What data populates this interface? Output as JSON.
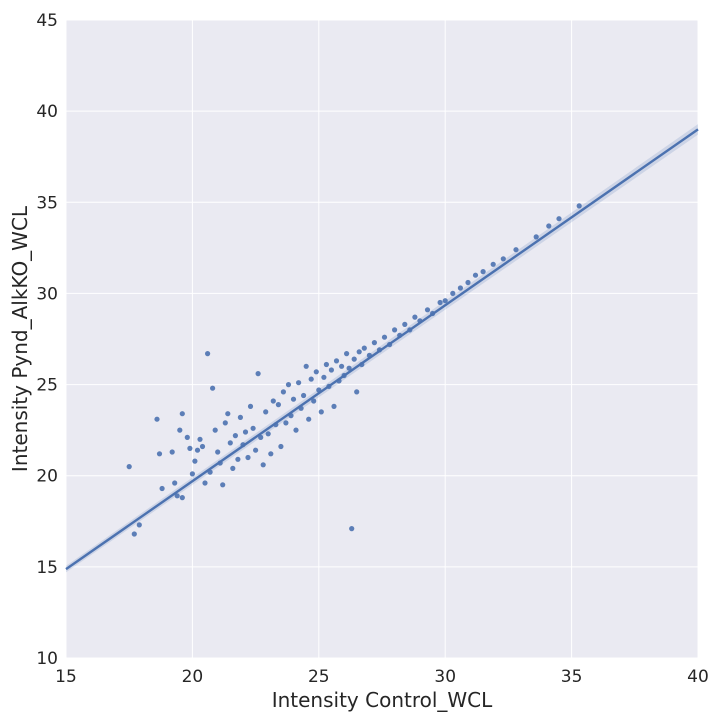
{
  "chart_data": {
    "type": "scatter",
    "title": "",
    "xlabel": "Intensity Control_WCL",
    "ylabel": "Intensity Pynd_AlkKO_WCL",
    "xlim": [
      15,
      40
    ],
    "ylim": [
      10,
      45
    ],
    "xticks": [
      "15",
      "20",
      "25",
      "30",
      "35",
      "40"
    ],
    "yticks": [
      "10",
      "15",
      "20",
      "25",
      "30",
      "35",
      "40",
      "45"
    ],
    "grid": true,
    "legend": "none",
    "regression": {
      "slope": 0.965,
      "intercept": 0.4,
      "x_range": [
        15,
        40
      ],
      "ci_halfwidth": 0.18
    },
    "colors": {
      "background": "#EAEAF2",
      "grid": "#FFFFFF",
      "points": "#4C72B0",
      "line": "#4C72B0"
    },
    "series": [
      {
        "points": [
          [
            17.5,
            20.5
          ],
          [
            17.7,
            16.8
          ],
          [
            17.9,
            17.3
          ],
          [
            18.6,
            23.1
          ],
          [
            18.7,
            21.2
          ],
          [
            18.8,
            19.3
          ],
          [
            19.2,
            21.3
          ],
          [
            19.3,
            19.6
          ],
          [
            19.4,
            18.9
          ],
          [
            19.6,
            18.8
          ],
          [
            19.5,
            22.5
          ],
          [
            19.6,
            23.4
          ],
          [
            19.8,
            22.1
          ],
          [
            19.9,
            21.5
          ],
          [
            20.0,
            20.1
          ],
          [
            20.1,
            20.8
          ],
          [
            20.2,
            21.4
          ],
          [
            20.3,
            22.0
          ],
          [
            20.4,
            21.6
          ],
          [
            20.5,
            19.6
          ],
          [
            20.6,
            26.7
          ],
          [
            20.7,
            20.2
          ],
          [
            20.8,
            24.8
          ],
          [
            20.9,
            22.5
          ],
          [
            21.0,
            21.3
          ],
          [
            21.1,
            20.7
          ],
          [
            21.2,
            19.5
          ],
          [
            21.3,
            22.9
          ],
          [
            21.4,
            23.4
          ],
          [
            21.5,
            21.8
          ],
          [
            21.6,
            20.4
          ],
          [
            21.7,
            22.2
          ],
          [
            21.8,
            20.9
          ],
          [
            21.9,
            23.2
          ],
          [
            22.0,
            21.7
          ],
          [
            22.1,
            22.4
          ],
          [
            22.2,
            21.0
          ],
          [
            22.3,
            23.8
          ],
          [
            22.4,
            22.6
          ],
          [
            22.5,
            21.4
          ],
          [
            22.6,
            25.6
          ],
          [
            22.7,
            22.1
          ],
          [
            22.8,
            20.6
          ],
          [
            22.9,
            23.5
          ],
          [
            23.0,
            22.3
          ],
          [
            23.1,
            21.2
          ],
          [
            23.2,
            24.1
          ],
          [
            23.3,
            22.8
          ],
          [
            23.4,
            23.9
          ],
          [
            23.5,
            21.6
          ],
          [
            23.6,
            24.6
          ],
          [
            23.7,
            22.9
          ],
          [
            23.8,
            25.0
          ],
          [
            23.9,
            23.3
          ],
          [
            24.0,
            24.2
          ],
          [
            24.1,
            22.5
          ],
          [
            24.2,
            25.1
          ],
          [
            24.3,
            23.7
          ],
          [
            24.4,
            24.4
          ],
          [
            24.5,
            26.0
          ],
          [
            24.6,
            23.1
          ],
          [
            24.7,
            25.3
          ],
          [
            24.8,
            24.1
          ],
          [
            24.9,
            25.7
          ],
          [
            25.0,
            24.7
          ],
          [
            25.1,
            23.5
          ],
          [
            25.2,
            25.4
          ],
          [
            25.3,
            26.1
          ],
          [
            25.4,
            24.9
          ],
          [
            25.5,
            25.8
          ],
          [
            25.6,
            23.8
          ],
          [
            25.7,
            26.3
          ],
          [
            25.8,
            25.2
          ],
          [
            25.9,
            26.0
          ],
          [
            26.0,
            25.5
          ],
          [
            26.1,
            26.7
          ],
          [
            26.2,
            25.9
          ],
          [
            26.3,
            17.1
          ],
          [
            26.4,
            26.4
          ],
          [
            26.5,
            24.6
          ],
          [
            26.6,
            26.8
          ],
          [
            26.7,
            26.1
          ],
          [
            26.8,
            27.0
          ],
          [
            27.0,
            26.6
          ],
          [
            27.2,
            27.3
          ],
          [
            27.4,
            26.9
          ],
          [
            27.6,
            27.6
          ],
          [
            27.8,
            27.2
          ],
          [
            28.0,
            28.0
          ],
          [
            28.2,
            27.7
          ],
          [
            28.4,
            28.3
          ],
          [
            28.6,
            28.0
          ],
          [
            28.8,
            28.7
          ],
          [
            29.0,
            28.5
          ],
          [
            29.3,
            29.1
          ],
          [
            29.5,
            28.9
          ],
          [
            29.8,
            29.5
          ],
          [
            30.0,
            29.6
          ],
          [
            30.3,
            30.0
          ],
          [
            30.6,
            30.3
          ],
          [
            30.9,
            30.6
          ],
          [
            31.2,
            31.0
          ],
          [
            31.5,
            31.2
          ],
          [
            31.9,
            31.6
          ],
          [
            32.3,
            31.9
          ],
          [
            32.8,
            32.4
          ],
          [
            33.6,
            33.1
          ],
          [
            34.1,
            33.7
          ],
          [
            34.5,
            34.1
          ],
          [
            35.3,
            34.8
          ]
        ]
      }
    ]
  }
}
